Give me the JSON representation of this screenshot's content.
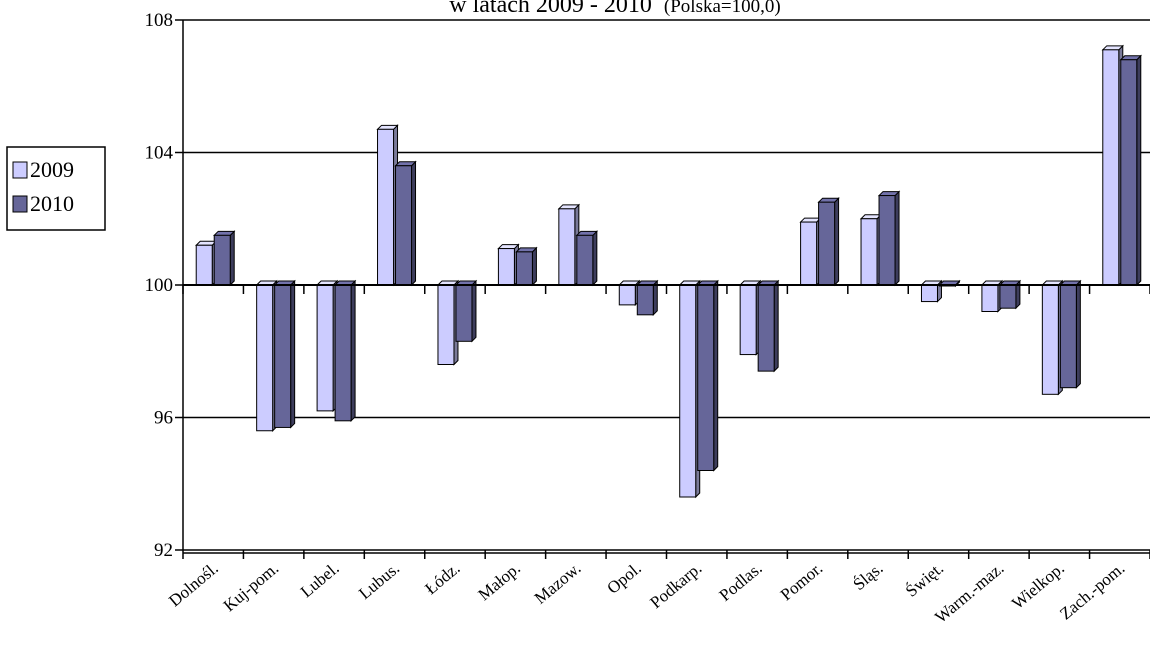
{
  "chart_data": {
    "type": "bar",
    "title_main": "w latach 2009 - 2010",
    "title_note": "(Polska=100,0)",
    "ylim": [
      92,
      108
    ],
    "yticks": [
      92,
      96,
      100,
      104,
      108
    ],
    "baseline": 100,
    "grid": true,
    "legend_position": "left",
    "categories": [
      "Dolnośl.",
      "Kuj-pom.",
      "Lubel.",
      "Lubus.",
      "Łódz.",
      "Małop.",
      "Mazow.",
      "Opol.",
      "Podkarp.",
      "Podlas.",
      "Pomor.",
      "Śląs.",
      "Święt.",
      "Warm.-maz.",
      "Wielkop.",
      "Zach.-pom."
    ],
    "series": [
      {
        "name": "2009",
        "color": "#ccccff",
        "values": [
          101.2,
          95.6,
          96.2,
          104.7,
          97.6,
          101.1,
          102.3,
          99.4,
          93.6,
          97.9,
          101.9,
          102.0,
          99.5,
          99.2,
          96.7,
          107.1
        ]
      },
      {
        "name": "2010",
        "color": "#666699",
        "values": [
          101.5,
          95.7,
          95.9,
          103.6,
          98.3,
          101.0,
          101.5,
          99.1,
          94.4,
          97.4,
          102.5,
          102.7,
          100.0,
          99.3,
          96.9,
          106.8
        ]
      }
    ]
  }
}
